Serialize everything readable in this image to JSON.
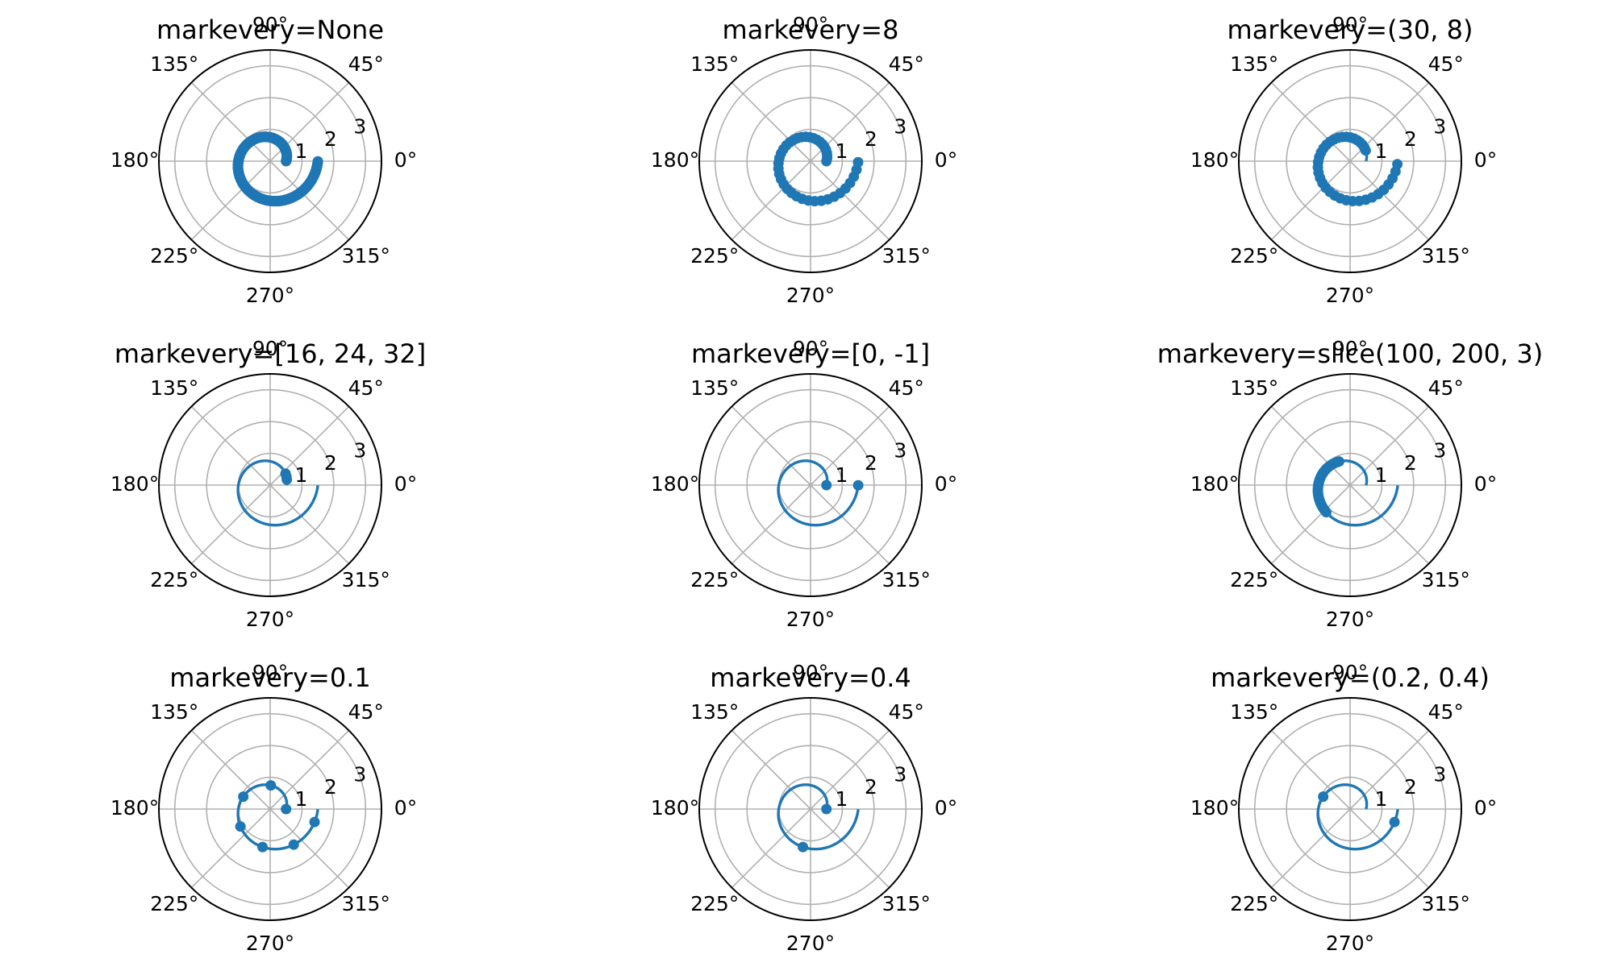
{
  "figure": {
    "line_color": "#1f77b4",
    "grid_color": "#b0b0b0",
    "spine_color": "#000000"
  },
  "chart_data": [
    {
      "type": "line",
      "projection": "polar",
      "title": "markevery=None",
      "theta_ticks": [
        "0°",
        "45°",
        "90°",
        "135°",
        "180°",
        "225°",
        "270°",
        "315°"
      ],
      "r_ticks": [
        "1",
        "2",
        "3"
      ],
      "rlim": [
        0,
        3.5
      ],
      "grid": true,
      "series": [
        {
          "function": "r = 0.5 + 0.5*theta/pi",
          "theta_range_rad": [
            0,
            6.28
          ],
          "points": 314,
          "markevery": null
        }
      ]
    },
    {
      "type": "line",
      "projection": "polar",
      "title": "markevery=8",
      "theta_ticks": [
        "0°",
        "45°",
        "90°",
        "135°",
        "180°",
        "225°",
        "270°",
        "315°"
      ],
      "r_ticks": [
        "1",
        "2",
        "3"
      ],
      "rlim": [
        0,
        3.5
      ],
      "grid": true,
      "series": [
        {
          "function": "r = 0.5 + 0.5*theta/pi",
          "theta_range_rad": [
            0,
            6.28
          ],
          "points": 314,
          "markevery": 8
        }
      ]
    },
    {
      "type": "line",
      "projection": "polar",
      "title": "markevery=(30, 8)",
      "theta_ticks": [
        "0°",
        "45°",
        "90°",
        "135°",
        "180°",
        "225°",
        "270°",
        "315°"
      ],
      "r_ticks": [
        "1",
        "2",
        "3"
      ],
      "rlim": [
        0,
        3.5
      ],
      "grid": true,
      "series": [
        {
          "function": "r = 0.5 + 0.5*theta/pi",
          "theta_range_rad": [
            0,
            6.28
          ],
          "points": 314,
          "markevery": [
            30,
            8
          ]
        }
      ]
    },
    {
      "type": "line",
      "projection": "polar",
      "title": "markevery=[16, 24, 32]",
      "theta_ticks": [
        "0°",
        "45°",
        "90°",
        "135°",
        "180°",
        "225°",
        "270°",
        "315°"
      ],
      "r_ticks": [
        "1",
        "2",
        "3"
      ],
      "rlim": [
        0,
        3.5
      ],
      "grid": true,
      "series": [
        {
          "function": "r = 0.5 + 0.5*theta/pi",
          "theta_range_rad": [
            0,
            6.28
          ],
          "points": 314,
          "markevery": [
            16,
            24,
            32
          ]
        }
      ]
    },
    {
      "type": "line",
      "projection": "polar",
      "title": "markevery=[0, -1]",
      "theta_ticks": [
        "0°",
        "45°",
        "90°",
        "135°",
        "180°",
        "225°",
        "270°",
        "315°"
      ],
      "r_ticks": [
        "1",
        "2",
        "3"
      ],
      "rlim": [
        0,
        3.5
      ],
      "grid": true,
      "series": [
        {
          "function": "r = 0.5 + 0.5*theta/pi",
          "theta_range_rad": [
            0,
            6.28
          ],
          "points": 314,
          "markevery": [
            0,
            -1
          ]
        }
      ]
    },
    {
      "type": "line",
      "projection": "polar",
      "title": "markevery=slice(100, 200, 3)",
      "theta_ticks": [
        "0°",
        "45°",
        "90°",
        "135°",
        "180°",
        "225°",
        "270°",
        "315°"
      ],
      "r_ticks": [
        "1",
        "2",
        "3"
      ],
      "rlim": [
        0,
        3.5
      ],
      "grid": true,
      "series": [
        {
          "function": "r = 0.5 + 0.5*theta/pi",
          "theta_range_rad": [
            0,
            6.28
          ],
          "points": 314,
          "markevery": {
            "slice": [
              100,
              200,
              3
            ]
          }
        }
      ]
    },
    {
      "type": "line",
      "projection": "polar",
      "title": "markevery=0.1",
      "theta_ticks": [
        "0°",
        "45°",
        "90°",
        "135°",
        "180°",
        "225°",
        "270°",
        "315°"
      ],
      "r_ticks": [
        "1",
        "2",
        "3"
      ],
      "rlim": [
        0,
        3.5
      ],
      "grid": true,
      "series": [
        {
          "function": "r = 0.5 + 0.5*theta/pi",
          "theta_range_rad": [
            0,
            6.28
          ],
          "points": 314,
          "markevery": 0.1
        }
      ]
    },
    {
      "type": "line",
      "projection": "polar",
      "title": "markevery=0.4",
      "theta_ticks": [
        "0°",
        "45°",
        "90°",
        "135°",
        "180°",
        "225°",
        "270°",
        "315°"
      ],
      "r_ticks": [
        "1",
        "2",
        "3"
      ],
      "rlim": [
        0,
        3.5
      ],
      "grid": true,
      "series": [
        {
          "function": "r = 0.5 + 0.5*theta/pi",
          "theta_range_rad": [
            0,
            6.28
          ],
          "points": 314,
          "markevery": 0.4
        }
      ]
    },
    {
      "type": "line",
      "projection": "polar",
      "title": "markevery=(0.2, 0.4)",
      "theta_ticks": [
        "0°",
        "45°",
        "90°",
        "135°",
        "180°",
        "225°",
        "270°",
        "315°"
      ],
      "r_ticks": [
        "1",
        "2",
        "3"
      ],
      "rlim": [
        0,
        3.5
      ],
      "grid": true,
      "series": [
        {
          "function": "r = 0.5 + 0.5*theta/pi",
          "theta_range_rad": [
            0,
            6.28
          ],
          "points": 314,
          "markevery": [
            0.2,
            0.4
          ]
        }
      ]
    }
  ]
}
